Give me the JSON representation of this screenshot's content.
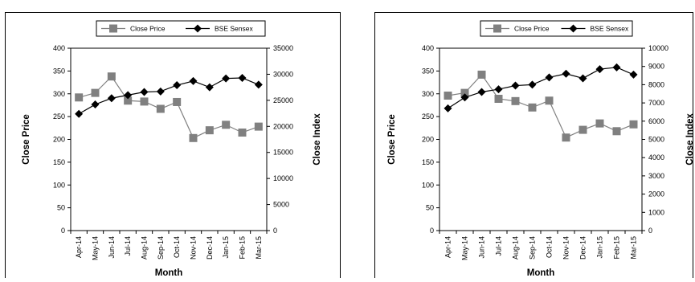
{
  "chart_data": [
    {
      "type": "line",
      "categories": [
        "Apr-14",
        "May-14",
        "Jun-14",
        "Jul-14",
        "Aug-14",
        "Sep-14",
        "Oct-14",
        "Nov-14",
        "Dec-14",
        "Jan-15",
        "Feb-15",
        "Mar-15"
      ],
      "xlabel": "Month",
      "ylabel": "Close Price",
      "y2label": "Close Index",
      "ylim": [
        0,
        400
      ],
      "yticks": [
        0,
        50,
        100,
        150,
        200,
        250,
        300,
        350,
        400
      ],
      "y2lim": [
        0,
        35000
      ],
      "y2ticks": [
        0,
        5000,
        10000,
        15000,
        20000,
        25000,
        30000,
        35000
      ],
      "legend": "top-center",
      "series": [
        {
          "name": "Close Price",
          "axis": "left",
          "color": "#808080",
          "marker": "square",
          "values": [
            292,
            302,
            338,
            285,
            283,
            267,
            282,
            203,
            220,
            232,
            215,
            228
          ]
        },
        {
          "name": "BSE Sensex",
          "axis": "right",
          "color": "#000000",
          "marker": "diamond",
          "values": [
            22400,
            24200,
            25400,
            26000,
            26600,
            26700,
            27900,
            28700,
            27500,
            29200,
            29300,
            28000
          ]
        }
      ]
    },
    {
      "type": "line",
      "categories": [
        "Apr-14",
        "May-14",
        "Jun-14",
        "Jul-14",
        "Aug-14",
        "Sep-14",
        "Oct-14",
        "Nov-14",
        "Dec-14",
        "Jan-15",
        "Feb-15",
        "Mar-15"
      ],
      "xlabel": "Month",
      "ylabel": "Close Price",
      "y2label": "Close Index",
      "ylim": [
        0,
        400
      ],
      "yticks": [
        0,
        50,
        100,
        150,
        200,
        250,
        300,
        350,
        400
      ],
      "y2lim": [
        0,
        10000
      ],
      "y2ticks": [
        0,
        1000,
        2000,
        3000,
        4000,
        5000,
        6000,
        7000,
        8000,
        9000,
        10000
      ],
      "legend": "top-center",
      "series": [
        {
          "name": "Close Price",
          "axis": "left",
          "color": "#808080",
          "marker": "square",
          "values": [
            296,
            302,
            342,
            289,
            284,
            270,
            285,
            204,
            221,
            235,
            218,
            233
          ]
        },
        {
          "name": "BSE Sensex",
          "axis": "right",
          "color": "#000000",
          "marker": "diamond",
          "values": [
            6700,
            7300,
            7600,
            7750,
            7950,
            8000,
            8400,
            8600,
            8350,
            8850,
            8950,
            8550
          ]
        }
      ]
    }
  ]
}
